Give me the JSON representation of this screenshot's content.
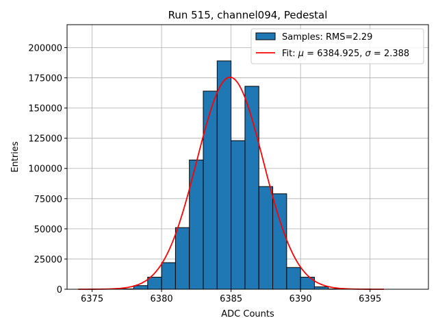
{
  "chart_data": {
    "type": "bar",
    "title": "Run 515, channel094, Pedestal",
    "xlabel": "ADC Counts",
    "ylabel": "Entries",
    "xlim": [
      6373.2,
      6399.2
    ],
    "ylim": [
      0,
      219000
    ],
    "xticks": [
      6375,
      6380,
      6385,
      6390,
      6395
    ],
    "yticks": [
      0,
      25000,
      50000,
      75000,
      100000,
      125000,
      150000,
      175000,
      200000
    ],
    "grid": true,
    "legend_position": "top-right",
    "histogram": {
      "label": "Samples: RMS=2.29",
      "color": "#1f77b4",
      "edgecolor": "#000000",
      "bin_width": 1,
      "bins": [
        {
          "x0": 6377,
          "x1": 6378,
          "value": 300
        },
        {
          "x0": 6378,
          "x1": 6379,
          "value": 3000
        },
        {
          "x0": 6379,
          "x1": 6380,
          "value": 10000
        },
        {
          "x0": 6380,
          "x1": 6381,
          "value": 22000
        },
        {
          "x0": 6381,
          "x1": 6382,
          "value": 51000
        },
        {
          "x0": 6382,
          "x1": 6383,
          "value": 107000
        },
        {
          "x0": 6383,
          "x1": 6384,
          "value": 164000
        },
        {
          "x0": 6384,
          "x1": 6385,
          "value": 189000
        },
        {
          "x0": 6385,
          "x1": 6386,
          "value": 123000
        },
        {
          "x0": 6386,
          "x1": 6387,
          "value": 168000
        },
        {
          "x0": 6387,
          "x1": 6388,
          "value": 85000
        },
        {
          "x0": 6388,
          "x1": 6389,
          "value": 79000
        },
        {
          "x0": 6389,
          "x1": 6390,
          "value": 18000
        },
        {
          "x0": 6390,
          "x1": 6391,
          "value": 10000
        },
        {
          "x0": 6391,
          "x1": 6392,
          "value": 2000
        },
        {
          "x0": 6392,
          "x1": 6393,
          "value": 300
        }
      ]
    },
    "fit": {
      "label_prefix": "Fit: ",
      "mu_symbol": "μ",
      "sigma_symbol": "σ",
      "mu": 6384.925,
      "sigma": 2.388,
      "mu_text": "6384.925",
      "sigma_text": "2.388",
      "amplitude": 175500,
      "x_range": [
        6374,
        6396
      ],
      "color": "#ff0000"
    }
  }
}
